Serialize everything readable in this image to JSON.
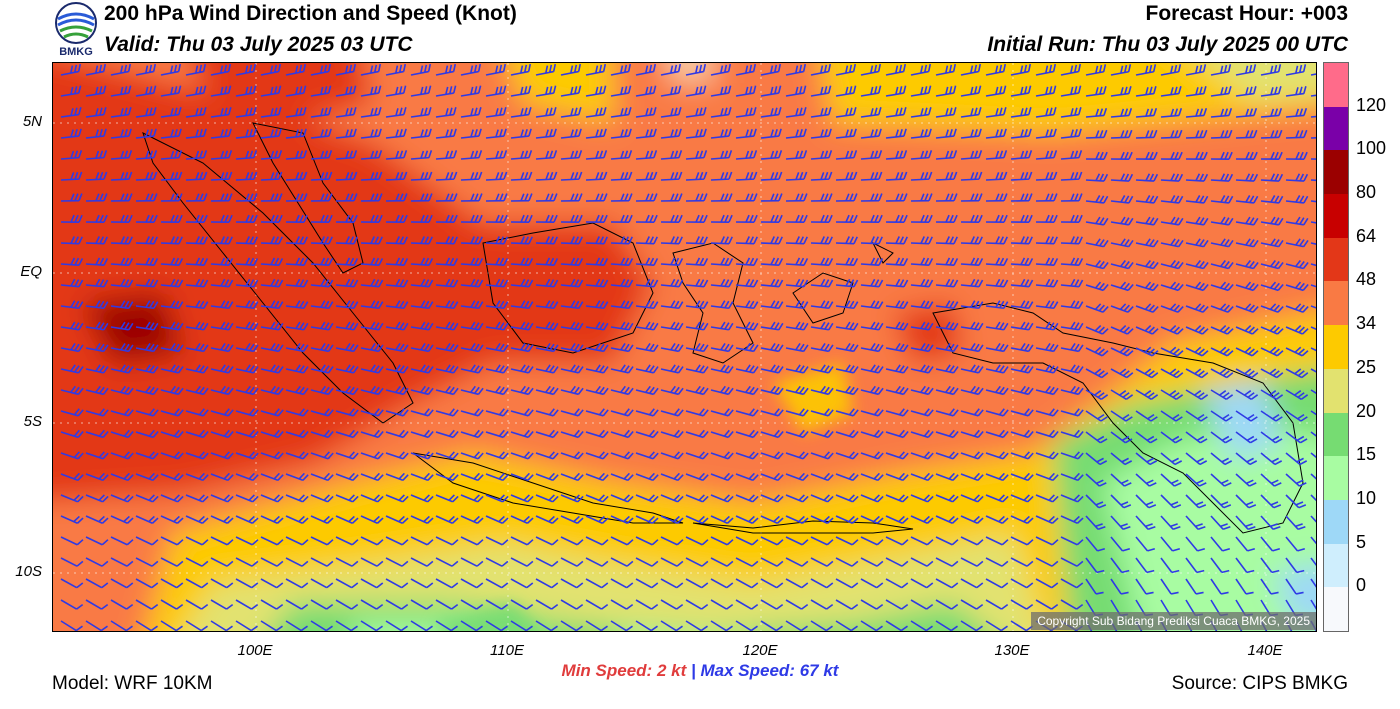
{
  "header": {
    "title": "200 hPa Wind Direction and Speed (Knot)",
    "valid": "Valid: Thu 03 July 2025 03 UTC",
    "forecast_hour": "Forecast Hour: +003",
    "initial_run": "Initial Run: Thu 03 July 2025 00 UTC",
    "logo_text": "BMKG"
  },
  "map": {
    "lat_labels": [
      "5N",
      "EQ",
      "5S",
      "10S"
    ],
    "lon_labels": [
      "100E",
      "110E",
      "120E",
      "130E",
      "140E"
    ],
    "copyright": "Copyright Sub Bidang Prediksi Cuaca BMKG, 2025"
  },
  "speed": {
    "min_label": "Min Speed:",
    "min_value": "2 kt",
    "separator": "|",
    "max_label": "Max Speed:",
    "max_value": "67 kt"
  },
  "footer": {
    "model": "Model: WRF 10KM",
    "source": "Source: CIPS BMKG"
  },
  "colorbar": {
    "labels": [
      "120",
      "100",
      "80",
      "64",
      "48",
      "34",
      "25",
      "20",
      "15",
      "10",
      "5",
      "0"
    ],
    "colors": [
      "#f7f9fc",
      "#cfeefd",
      "#9ed8f7",
      "#a8fca2",
      "#76dc72",
      "#e2e26f",
      "#fdca00",
      "#f97a44",
      "#e33718",
      "#c80000",
      "#9b0000",
      "#7a00a8",
      "#ff6b8a"
    ]
  }
}
